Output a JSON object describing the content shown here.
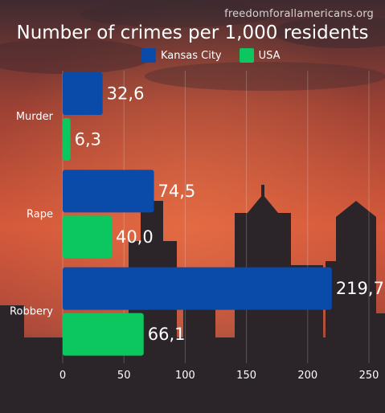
{
  "watermark": "freedomforallamericans.org",
  "colors": {
    "kansas_city": "#0a4aa8",
    "usa": "#0cc65f"
  },
  "chart_data": {
    "type": "bar",
    "orientation": "horizontal",
    "title": "Number of crimes per 1,000 residents",
    "categories": [
      "Murder",
      "Rape",
      "Robbery"
    ],
    "series": [
      {
        "name": "Kansas City",
        "values": [
          32.6,
          74.5,
          219.7
        ],
        "labels": [
          "32,6",
          "74,5",
          "219,7"
        ]
      },
      {
        "name": "USA",
        "values": [
          6.3,
          40.0,
          66.1
        ],
        "labels": [
          "6,3",
          "40,0",
          "66,1"
        ]
      }
    ],
    "xlim": [
      0,
      250
    ],
    "xticks": [
      "0",
      "50",
      "100",
      "150",
      "200",
      "250"
    ],
    "grid": true,
    "legend": "top-center"
  }
}
